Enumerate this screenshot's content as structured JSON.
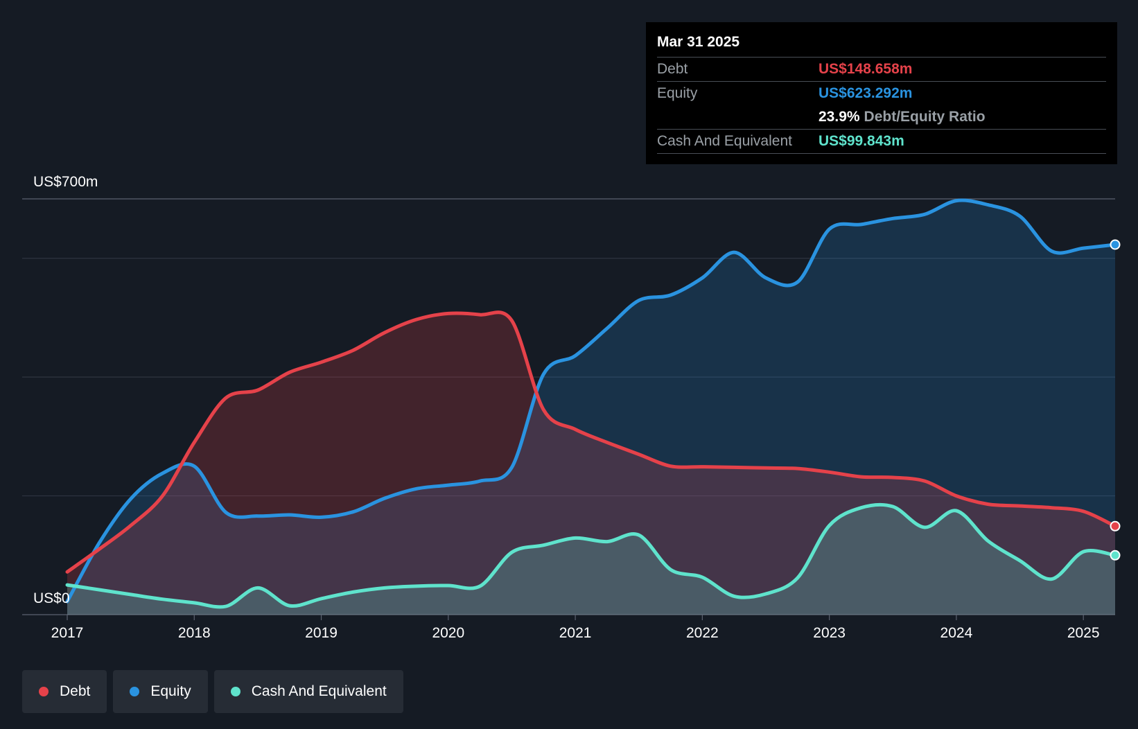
{
  "tooltip": {
    "date": "Mar 31 2025",
    "rows": [
      {
        "key": "Debt",
        "value": "US$148.658m",
        "color": "#e5424a"
      },
      {
        "key": "Equity",
        "value": "US$623.292m",
        "color": "#2a93e0"
      }
    ],
    "ratio_value": "23.9%",
    "ratio_label": "Debt/Equity Ratio",
    "cash_key": "Cash And Equivalent",
    "cash_value": "US$99.843m",
    "cash_color": "#5fe3cc"
  },
  "legend": [
    {
      "label": "Debt",
      "color": "#e5424a"
    },
    {
      "label": "Equity",
      "color": "#2a93e0"
    },
    {
      "label": "Cash And Equivalent",
      "color": "#5fe3cc"
    }
  ],
  "chart_data": {
    "type": "area",
    "y_top_label": "US$700m",
    "y_bottom_label": "US$0",
    "ylim": [
      0,
      700
    ],
    "xlim": [
      2017.0,
      2025.25
    ],
    "x_ticks": [
      "2017",
      "2018",
      "2019",
      "2020",
      "2021",
      "2022",
      "2023",
      "2024",
      "2025"
    ],
    "grid": true,
    "series": [
      {
        "name": "Debt",
        "color": "#e5424a",
        "points": [
          [
            2017.0,
            72
          ],
          [
            2017.25,
            110
          ],
          [
            2017.5,
            150
          ],
          [
            2017.75,
            200
          ],
          [
            2018.0,
            290
          ],
          [
            2018.25,
            365
          ],
          [
            2018.5,
            378
          ],
          [
            2018.75,
            408
          ],
          [
            2019.0,
            425
          ],
          [
            2019.25,
            445
          ],
          [
            2019.5,
            475
          ],
          [
            2019.75,
            497
          ],
          [
            2020.0,
            507
          ],
          [
            2020.25,
            505
          ],
          [
            2020.5,
            495
          ],
          [
            2020.75,
            345
          ],
          [
            2021.0,
            312
          ],
          [
            2021.25,
            290
          ],
          [
            2021.5,
            270
          ],
          [
            2021.75,
            250
          ],
          [
            2022.0,
            249
          ],
          [
            2022.25,
            248
          ],
          [
            2022.5,
            247
          ],
          [
            2022.75,
            246
          ],
          [
            2023.0,
            240
          ],
          [
            2023.25,
            232
          ],
          [
            2023.5,
            231
          ],
          [
            2023.75,
            225
          ],
          [
            2024.0,
            200
          ],
          [
            2024.25,
            186
          ],
          [
            2024.5,
            183
          ],
          [
            2024.75,
            180
          ],
          [
            2025.0,
            174
          ],
          [
            2025.25,
            149
          ]
        ]
      },
      {
        "name": "Equity",
        "color": "#2a93e0",
        "points": [
          [
            2017.0,
            22
          ],
          [
            2017.25,
            120
          ],
          [
            2017.5,
            195
          ],
          [
            2017.75,
            238
          ],
          [
            2018.0,
            250
          ],
          [
            2018.25,
            172
          ],
          [
            2018.5,
            166
          ],
          [
            2018.75,
            168
          ],
          [
            2019.0,
            164
          ],
          [
            2019.25,
            173
          ],
          [
            2019.5,
            196
          ],
          [
            2019.75,
            212
          ],
          [
            2020.0,
            218
          ],
          [
            2020.25,
            225
          ],
          [
            2020.5,
            248
          ],
          [
            2020.75,
            405
          ],
          [
            2021.0,
            436
          ],
          [
            2021.25,
            482
          ],
          [
            2021.5,
            529
          ],
          [
            2021.75,
            538
          ],
          [
            2022.0,
            567
          ],
          [
            2022.25,
            610
          ],
          [
            2022.5,
            567
          ],
          [
            2022.75,
            560
          ],
          [
            2023.0,
            649
          ],
          [
            2023.25,
            657
          ],
          [
            2023.5,
            667
          ],
          [
            2023.75,
            674
          ],
          [
            2024.0,
            697
          ],
          [
            2024.25,
            690
          ],
          [
            2024.5,
            671
          ],
          [
            2024.75,
            612
          ],
          [
            2025.0,
            617
          ],
          [
            2025.25,
            623
          ]
        ]
      },
      {
        "name": "Cash And Equivalent",
        "color": "#5fe3cc",
        "points": [
          [
            2017.0,
            50
          ],
          [
            2017.25,
            42
          ],
          [
            2017.5,
            34
          ],
          [
            2017.75,
            26
          ],
          [
            2018.0,
            20
          ],
          [
            2018.25,
            14
          ],
          [
            2018.5,
            45
          ],
          [
            2018.75,
            15
          ],
          [
            2019.0,
            27
          ],
          [
            2019.25,
            38
          ],
          [
            2019.5,
            45
          ],
          [
            2019.75,
            48
          ],
          [
            2020.0,
            49
          ],
          [
            2020.25,
            48
          ],
          [
            2020.5,
            105
          ],
          [
            2020.75,
            117
          ],
          [
            2021.0,
            129
          ],
          [
            2021.25,
            123
          ],
          [
            2021.5,
            134
          ],
          [
            2021.75,
            76
          ],
          [
            2022.0,
            63
          ],
          [
            2022.25,
            31
          ],
          [
            2022.5,
            35
          ],
          [
            2022.75,
            62
          ],
          [
            2023.0,
            150
          ],
          [
            2023.25,
            180
          ],
          [
            2023.5,
            182
          ],
          [
            2023.75,
            147
          ],
          [
            2024.0,
            175
          ],
          [
            2024.25,
            124
          ],
          [
            2024.5,
            91
          ],
          [
            2024.75,
            60
          ],
          [
            2025.0,
            106
          ],
          [
            2025.25,
            100
          ]
        ]
      }
    ]
  }
}
